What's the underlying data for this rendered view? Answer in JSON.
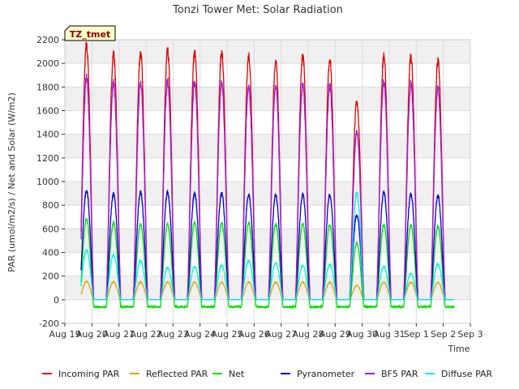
{
  "chart_data": {
    "type": "line",
    "title": "Tonzi Tower Met: Solar Radiation",
    "xlabel": "Time",
    "ylabel": "PAR (umol/m2/s) / Net and Solar (W/m2)",
    "ylim": [
      -200,
      2200
    ],
    "xlim": [
      0,
      15
    ],
    "yticks": [
      -200,
      0,
      200,
      400,
      600,
      800,
      1000,
      1200,
      1400,
      1600,
      1800,
      2000,
      2200
    ],
    "xticks": [
      "Aug 19",
      "Aug 20",
      "Aug 21",
      "Aug 22",
      "Aug 23",
      "Aug 24",
      "Aug 25",
      "Aug 26",
      "Aug 27",
      "Aug 28",
      "Aug 29",
      "Aug 30",
      "Aug 31",
      "Sep 1",
      "Sep 2",
      "Sep 3"
    ],
    "grid": true,
    "badge": "TZ_tmet",
    "legend_position": "bottom",
    "day_centers": [
      0.8,
      1.8,
      2.8,
      3.8,
      4.8,
      5.8,
      6.8,
      7.8,
      8.8,
      9.8,
      10.8,
      11.8,
      12.8,
      13.8
    ],
    "series": [
      {
        "name": "Incoming PAR",
        "color": "#dd0000",
        "night": 0,
        "peaks": [
          2150,
          2080,
          2090,
          2100,
          2090,
          2090,
          2070,
          2020,
          2070,
          2040,
          1680,
          2060,
          2060,
          2020
        ]
      },
      {
        "name": "Reflected PAR",
        "color": "#e8a000",
        "night": 0,
        "peaks": [
          155,
          150,
          150,
          150,
          148,
          148,
          148,
          148,
          148,
          148,
          120,
          148,
          148,
          148
        ]
      },
      {
        "name": "Net",
        "color": "#00dd00",
        "night": -60,
        "peaks": [
          680,
          650,
          640,
          640,
          650,
          650,
          650,
          640,
          640,
          630,
          480,
          630,
          630,
          620
        ]
      },
      {
        "name": "Pyranometer",
        "color": "#0000cc",
        "night": 0,
        "peaks": [
          925,
          895,
          905,
          910,
          900,
          900,
          890,
          885,
          890,
          885,
          720,
          905,
          890,
          880
        ]
      },
      {
        "name": "BF5 PAR",
        "color": "#9a1ee6",
        "night": 0,
        "peaks": [
          1880,
          1840,
          1840,
          1850,
          1840,
          1840,
          1800,
          1810,
          1830,
          1810,
          1420,
          1840,
          1830,
          1790
        ]
      },
      {
        "name": "Diffuse PAR",
        "color": "#00eeee",
        "night": 0,
        "peaks": [
          420,
          380,
          330,
          270,
          280,
          290,
          330,
          310,
          290,
          300,
          900,
          280,
          220,
          300
        ]
      }
    ]
  }
}
